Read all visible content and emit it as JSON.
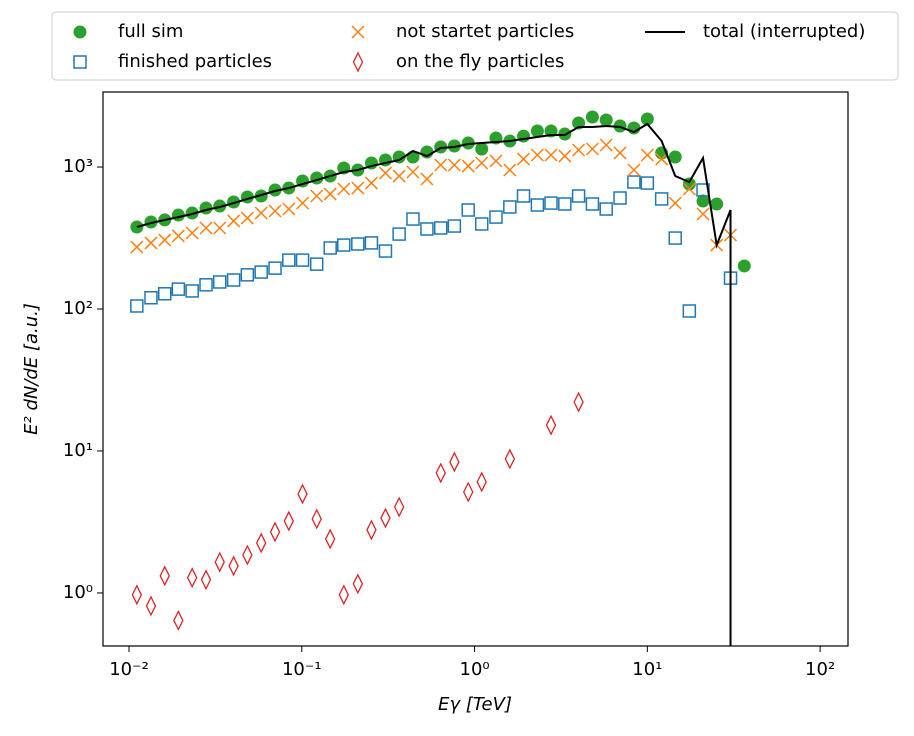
{
  "chart_data": {
    "type": "scatter",
    "xlabel": "Eγ [TeV]",
    "ylabel": "E² dN/dE [a.u.]",
    "xscale": "log",
    "yscale": "log",
    "xlim": [
      0.00707,
      145
    ],
    "ylim": [
      0.423,
      3376
    ],
    "xticks": [
      {
        "value": 0.01,
        "label": "10⁻²"
      },
      {
        "value": 0.1,
        "label": "10⁻¹"
      },
      {
        "value": 1,
        "label": "10⁰"
      },
      {
        "value": 10,
        "label": "10¹"
      },
      {
        "value": 100,
        "label": "10²"
      }
    ],
    "yticks": [
      {
        "value": 1,
        "label": "10⁰"
      },
      {
        "value": 10,
        "label": "10¹"
      },
      {
        "value": 100,
        "label": "10²"
      },
      {
        "value": 1000,
        "label": "10³"
      }
    ],
    "legend": {
      "loc": "upper center",
      "ncol": 3
    },
    "x": [
      0.0111,
      0.0134,
      0.0161,
      0.0193,
      0.0232,
      0.0279,
      0.0335,
      0.0403,
      0.0484,
      0.0582,
      0.07,
      0.0841,
      0.101,
      0.122,
      0.146,
      0.175,
      0.211,
      0.253,
      0.305,
      0.366,
      0.44,
      0.53,
      0.637,
      0.764,
      0.919,
      1.1,
      1.33,
      1.6,
      1.92,
      2.31,
      2.77,
      3.33,
      4.0,
      4.81,
      5.78,
      6.95,
      8.36,
      10.0,
      12.1,
      14.5,
      17.5,
      21.0,
      25.2,
      30.3,
      36.4
    ],
    "series": [
      {
        "name": "full sim",
        "color": "#2ca02c",
        "marker": "o",
        "values": [
          378,
          410,
          424,
          459,
          474,
          514,
          531,
          567,
          615,
          625,
          689,
          711,
          797,
          837,
          864,
          984,
          953,
          1067,
          1120,
          1176,
          1176,
          1276,
          1383,
          1406,
          1476,
          1339,
          1600,
          1524,
          1652,
          1794,
          1794,
          1707,
          2042,
          2250,
          2143,
          1944,
          1883,
          2178,
          1256,
          1176,
          759,
          576,
          549,
          null,
          201
        ]
      },
      {
        "name": "finished particles",
        "color": "#1f77b4",
        "marker": "s",
        "values": [
          105,
          120,
          128,
          138,
          134,
          148,
          155,
          160,
          174,
          182,
          194,
          221,
          221,
          207,
          269,
          282,
          287,
          292,
          256,
          337,
          430,
          366,
          372,
          384,
          498,
          397,
          444,
          523,
          625,
          540,
          557,
          549,
          625,
          549,
          506,
          605,
          784,
          771,
          596,
          316,
          96.8,
          689,
          null,
          165,
          null
        ]
      },
      {
        "name": "not startet particles",
        "color": "#ff7f0e",
        "marker": "x",
        "values": [
          273,
          292,
          306,
          327,
          343,
          372,
          372,
          417,
          437,
          474,
          490,
          506,
          557,
          625,
          645,
          700,
          711,
          771,
          907,
          864,
          922,
          823,
          1033,
          1033,
          1016,
          1067,
          1102,
          953,
          1138,
          1215,
          1215,
          1194,
          1318,
          1339,
          1429,
          1256,
          953,
          1215,
          1138,
          557,
          700,
          467,
          282,
          332,
          null
        ]
      },
      {
        "name": "on the fly particles",
        "color": "#d62728",
        "marker": "d",
        "values": [
          0.97,
          0.81,
          1.32,
          0.64,
          1.28,
          1.24,
          1.65,
          1.55,
          1.85,
          2.25,
          2.69,
          3.21,
          4.98,
          3.32,
          2.4,
          0.97,
          1.16,
          2.78,
          3.37,
          4.03,
          null,
          null,
          7.0,
          8.37,
          5.14,
          6.05,
          null,
          8.79,
          null,
          null,
          15.2,
          null,
          22.1,
          null,
          null,
          null,
          null,
          null,
          null,
          null,
          null,
          null,
          null,
          null,
          null
        ]
      },
      {
        "name": "total (interrupted)",
        "color": "#000000",
        "marker": "line",
        "values": [
          378,
          403,
          424,
          444,
          467,
          498,
          523,
          557,
          596,
          635,
          678,
          711,
          759,
          809,
          864,
          922,
          953,
          1016,
          1067,
          1120,
          1297,
          1194,
          1361,
          1383,
          1452,
          1476,
          1500,
          1524,
          1574,
          1626,
          1680,
          1680,
          1914,
          1914,
          1944,
          1914,
          1763,
          2010,
          1524,
          864,
          784,
          1157,
          282,
          498,
          0
        ]
      }
    ]
  }
}
